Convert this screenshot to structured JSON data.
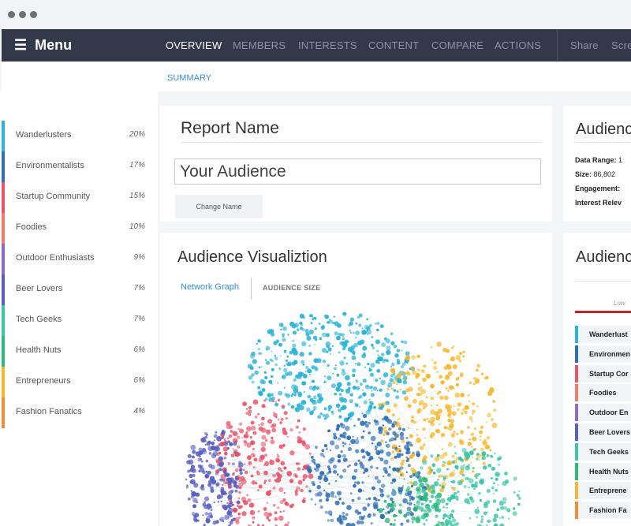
{
  "nav": {
    "menu_label": "Menu",
    "items": [
      "OVERVIEW",
      "MEMBERS",
      "INTERESTS",
      "CONTENT",
      "COMPARE",
      "ACTIONS"
    ],
    "share": "Share",
    "screen": "Scre"
  },
  "subnav": {
    "summary": "SUMMARY"
  },
  "sidebar": {
    "segments": [
      {
        "name": "Wanderlusters",
        "pct": "20%",
        "color": "#2db3d4"
      },
      {
        "name": "Environmentalists",
        "pct": "17%",
        "color": "#2f6fb3"
      },
      {
        "name": "Startup Community",
        "pct": "15%",
        "color": "#e8546a"
      },
      {
        "name": "Foodies",
        "pct": "10%",
        "color": "#f07d6b"
      },
      {
        "name": "Outdoor Enthusiasts",
        "pct": "9%",
        "color": "#8a6cc6"
      },
      {
        "name": "Beer Lovers",
        "pct": "7%",
        "color": "#5a5fbf"
      },
      {
        "name": "Tech Geeks",
        "pct": "7%",
        "color": "#3cc5a8"
      },
      {
        "name": "Health Nuts",
        "pct": "6%",
        "color": "#2fb77e"
      },
      {
        "name": "Entrepreneurs",
        "pct": "6%",
        "color": "#f5b82e"
      },
      {
        "name": "Fashion Fanatics",
        "pct": "4%",
        "color": "#f08c3a"
      }
    ]
  },
  "report": {
    "title": "Report Name",
    "audience_value": "Your Audience",
    "change_name": "Change Name"
  },
  "viz": {
    "title": "Audience Visualiztion",
    "tab_network": "Network Graph",
    "tab_size": "AUDIENCE SIZE"
  },
  "right": {
    "title": "Audienc",
    "data_range_label": "Data Range:",
    "data_range_value": "1",
    "size_label": "Size:",
    "size_value": "86,802",
    "engagement_label": "Engagement:",
    "interest_label": "Interest Relev",
    "title2": "Audienc",
    "low_label": "Low",
    "segments": [
      {
        "name": "Wanderlust",
        "color": "#2db3d4"
      },
      {
        "name": "Environmen",
        "color": "#2f6fb3"
      },
      {
        "name": "Startup Cor",
        "color": "#e8546a"
      },
      {
        "name": "Foodies",
        "color": "#f07d6b"
      },
      {
        "name": "Outdoor En",
        "color": "#8a6cc6"
      },
      {
        "name": "Beer Lovers",
        "color": "#5a5fbf"
      },
      {
        "name": "Tech Geeks",
        "color": "#3cc5a8"
      },
      {
        "name": "Health Nuts",
        "color": "#2fb77e"
      },
      {
        "name": "Entreprene",
        "color": "#f5b82e"
      },
      {
        "name": "Fashion Fa",
        "color": "#f08c3a"
      }
    ]
  }
}
